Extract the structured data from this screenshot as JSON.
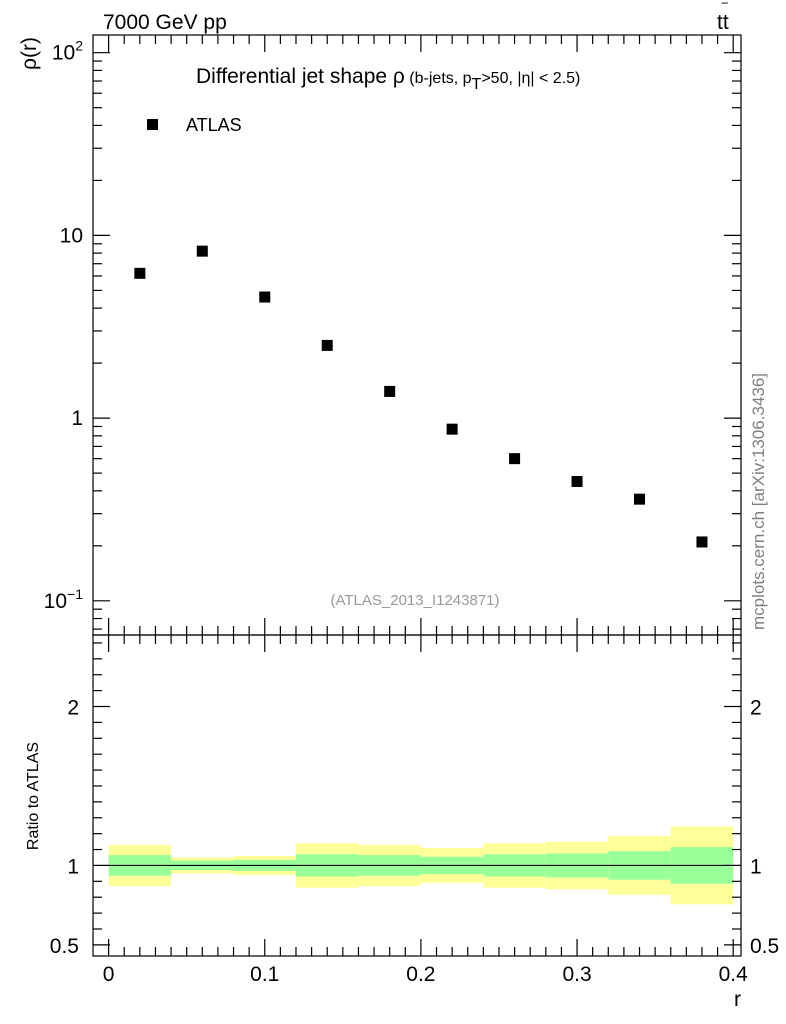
{
  "header": {
    "energy": "7000 GeV pp",
    "process_base": "tt",
    "process_bar": "‾"
  },
  "chart_data": [
    {
      "type": "scatter",
      "title_main": "Differential jet shape ",
      "title_symbol": "ρ",
      "title_sub_open": " (b-jets, p",
      "title_sub_subscript": "T",
      "title_sub_close": ">50, |η| < 2.5)",
      "ylabel": "ρ(r)",
      "yscale": "log",
      "ylim": [
        0.065,
        125
      ],
      "xlim": [
        -0.01,
        0.405
      ],
      "yticks_major": [
        {
          "value": 0.1,
          "base": "10",
          "exp": "−1"
        },
        {
          "value": 1,
          "base": "1",
          "exp": ""
        },
        {
          "value": 10,
          "base": "10",
          "exp": ""
        },
        {
          "value": 100,
          "base": "10",
          "exp": "2"
        }
      ],
      "legend": {
        "label": "ATLAS",
        "position": "top-left"
      },
      "watermark": "(ATLAS_2013_I1243871)",
      "series": [
        {
          "name": "ATLAS",
          "color": "#000000",
          "x": [
            0.02,
            0.06,
            0.1,
            0.14,
            0.18,
            0.22,
            0.26,
            0.3,
            0.34,
            0.38
          ],
          "y": [
            6.2,
            8.2,
            4.6,
            2.5,
            1.4,
            0.87,
            0.6,
            0.45,
            0.36,
            0.21
          ]
        }
      ]
    },
    {
      "type": "area",
      "ylabel": "Ratio to ATLAS",
      "xlabel": "r",
      "ylim": [
        0.43,
        2.45
      ],
      "xlim": [
        -0.01,
        0.405
      ],
      "xticks": [
        {
          "value": 0,
          "label": "0"
        },
        {
          "value": 0.1,
          "label": "0.1"
        },
        {
          "value": 0.2,
          "label": "0.2"
        },
        {
          "value": 0.3,
          "label": "0.3"
        },
        {
          "value": 0.4,
          "label": "0.4"
        }
      ],
      "yticks": [
        {
          "value": 0.5,
          "label": "0.5"
        },
        {
          "value": 1,
          "label": "1"
        },
        {
          "value": 2,
          "label": "2"
        }
      ],
      "reference_line": 1,
      "bins": [
        0,
        0.04,
        0.08,
        0.12,
        0.16,
        0.2,
        0.24,
        0.28,
        0.32,
        0.36,
        0.4
      ],
      "band_inner": {
        "color": "#99ff99",
        "low": [
          0.935,
          0.97,
          0.965,
          0.93,
          0.935,
          0.945,
          0.93,
          0.925,
          0.91,
          0.885
        ],
        "high": [
          1.065,
          1.03,
          1.035,
          1.07,
          1.065,
          1.055,
          1.07,
          1.075,
          1.09,
          1.115
        ]
      },
      "band_outer": {
        "color": "#ffff99",
        "low": [
          0.87,
          0.95,
          0.94,
          0.86,
          0.87,
          0.89,
          0.86,
          0.85,
          0.815,
          0.755
        ],
        "high": [
          1.13,
          1.05,
          1.06,
          1.14,
          1.13,
          1.11,
          1.14,
          1.15,
          1.185,
          1.245
        ]
      }
    }
  ],
  "side_label": "mcplots.cern.ch [arXiv:1306.3436]"
}
